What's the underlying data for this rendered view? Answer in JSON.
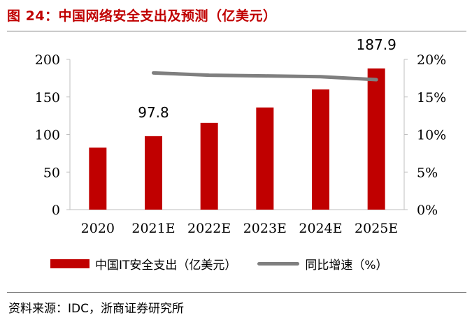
{
  "header": {
    "title": "图 24：中国网络安全支出及预测（亿美元）"
  },
  "footer": {
    "source": "资料来源：IDC，浙商证券研究所"
  },
  "chart_data": {
    "type": "bar",
    "title": "中国网络安全支出及预测（亿美元）",
    "categories": [
      "2020",
      "2021E",
      "2022E",
      "2023E",
      "2024E",
      "2025E"
    ],
    "series": [
      {
        "name": "中国IT安全支出（亿美元）",
        "type": "bar",
        "axis": "left",
        "color": "#c00000",
        "values": [
          82.5,
          97.8,
          115.5,
          136,
          160,
          187.9
        ]
      },
      {
        "name": "同比增速（%）",
        "type": "line",
        "axis": "right",
        "color": "#7f7f7f",
        "values": [
          null,
          18.2,
          17.9,
          17.8,
          17.7,
          17.3
        ]
      }
    ],
    "data_labels": [
      {
        "category": "2021E",
        "text": "97.8"
      },
      {
        "category": "2025E",
        "text": "187.9"
      }
    ],
    "y_left": {
      "ylim": [
        0,
        200
      ],
      "ticks": [
        0,
        50,
        100,
        150,
        200
      ],
      "tick_labels": [
        "0",
        "50",
        "100",
        "150",
        "200"
      ]
    },
    "y_right": {
      "ylim": [
        0,
        20
      ],
      "ticks": [
        0,
        5,
        10,
        15,
        20
      ],
      "tick_labels": [
        "0%",
        "5%",
        "10%",
        "15%",
        "20%"
      ]
    },
    "grid": false,
    "legend_position": "bottom"
  }
}
